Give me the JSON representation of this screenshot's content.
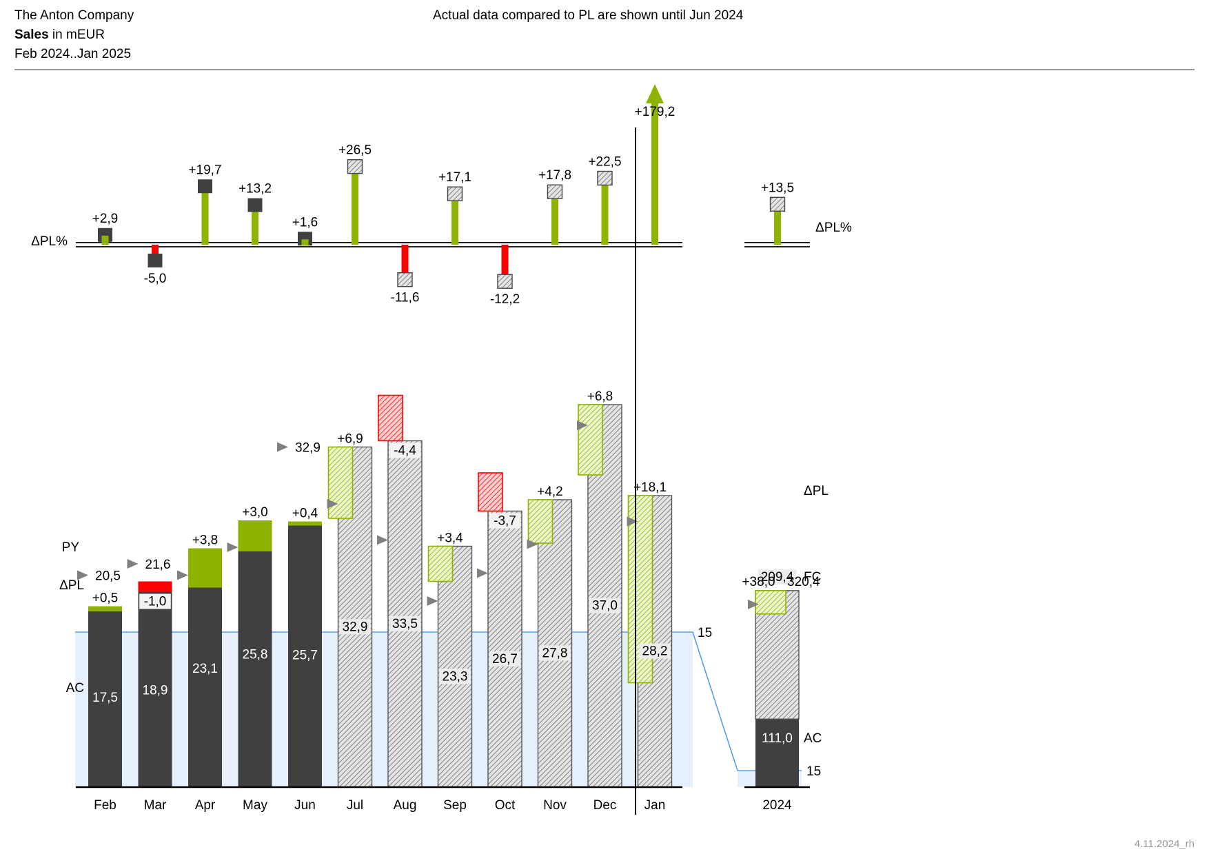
{
  "header": {
    "company": "The Anton Company",
    "measure": "Sales",
    "unit": " in mEUR",
    "period": "Feb 2024..Jan 2025",
    "note": "Actual data compared to PL are shown until Jun 2024"
  },
  "footer": {
    "stamp": "4.11.2024_rh"
  },
  "labels": {
    "delta_pl_pct": "ΔPL%",
    "delta_pl": "ΔPL",
    "py": "PY",
    "ac": "AC",
    "fc": "FC"
  },
  "colors": {
    "actual": "#404040",
    "positive": "#8CB400",
    "negative": "#FF0000",
    "reference_band": "#E6F0FC",
    "reference_line": "#5B9BE8",
    "marker": "#808080"
  },
  "chart_data": [
    {
      "type": "bar",
      "name": "ΔPL%",
      "categories": [
        "Feb",
        "Mar",
        "Apr",
        "May",
        "Jun",
        "Jul",
        "Aug",
        "Sep",
        "Oct",
        "Nov",
        "Dec",
        "Jan"
      ],
      "values": [
        2.9,
        -5.0,
        19.7,
        13.2,
        1.6,
        26.5,
        -11.6,
        17.1,
        -12.2,
        17.8,
        22.5,
        179.2
      ],
      "labels": [
        "+2,9",
        "-5,0",
        "+19,7",
        "+13,2",
        "+1,6",
        "+26,5",
        "-11,6",
        "+17,1",
        "-12,2",
        "+17,8",
        "+22,5",
        "+179,2"
      ],
      "kind": [
        "AC",
        "AC",
        "AC",
        "AC",
        "AC",
        "FC",
        "FC",
        "FC",
        "FC",
        "FC",
        "FC",
        "FC"
      ],
      "clipped_arrow": "Jan",
      "total": {
        "category": "2024",
        "value": 13.5,
        "label": "+13,5",
        "kind": "FC"
      }
    },
    {
      "type": "bar",
      "name": "Sales",
      "categories": [
        "Feb",
        "Mar",
        "Apr",
        "May",
        "Jun",
        "Jul",
        "Aug",
        "Sep",
        "Oct",
        "Nov",
        "Dec",
        "Jan"
      ],
      "kind": [
        "AC",
        "AC",
        "AC",
        "AC",
        "AC",
        "FC",
        "FC",
        "FC",
        "FC",
        "FC",
        "FC",
        "FC"
      ],
      "values": [
        17.5,
        18.9,
        23.1,
        25.8,
        25.7,
        32.9,
        33.5,
        23.3,
        26.7,
        27.8,
        37.0,
        28.2
      ],
      "value_labels": [
        "17,5",
        "18,9",
        "23,1",
        "25,8",
        "25,7",
        "32,9",
        "33,5",
        "23,3",
        "26,7",
        "27,8",
        "37,0",
        "28,2"
      ],
      "delta_pl": [
        0.5,
        -1.0,
        3.8,
        3.0,
        0.4,
        6.9,
        -4.4,
        3.4,
        -3.7,
        4.2,
        6.8,
        18.1
      ],
      "delta_pl_labels": [
        "+0,5",
        "-1,0",
        "+3,8",
        "+3,0",
        "+0,4",
        "+6,9",
        "-4,4",
        "+3,4",
        "-3,7",
        "+4,2",
        "+6,8",
        "+18,1"
      ],
      "py": [
        20.5,
        21.6,
        20.5,
        23.2,
        32.9,
        27.4,
        23.9,
        18.0,
        20.7,
        23.5,
        35.0,
        25.7
      ],
      "py_labels": {
        "Feb": "20,5",
        "Mar": "21,6",
        "Jun": "32,9"
      },
      "reference_line": {
        "value": 15,
        "label": "15"
      },
      "ylim": [
        0,
        40
      ],
      "total": {
        "category": "2024",
        "ac": 111.0,
        "ac_label": "111,0",
        "fc": 209.4,
        "fc_label": "209,4",
        "sum": 320.4,
        "sum_label": "320,4",
        "delta_pl": 38.0,
        "delta_pl_label": "+38,0",
        "reference_label": "15"
      }
    }
  ]
}
